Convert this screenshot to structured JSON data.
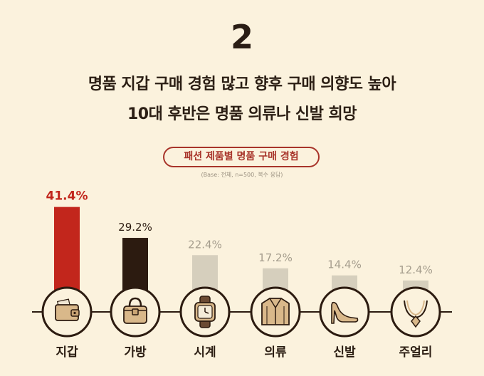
{
  "header": {
    "number": "2",
    "headline_line1": "명품 지갑 구매 경험 많고 향후 구매 의향도 높아",
    "headline_line2": "10대 후반은 명품 의류나 신발 희망"
  },
  "chart_data": {
    "type": "bar",
    "title": "패션 제품별 명품 구매 경험",
    "subtitle": "(Base: 전체, n=500, 복수 응답)",
    "categories": [
      "지갑",
      "가방",
      "시계",
      "의류",
      "신발",
      "주얼리"
    ],
    "values": [
      41.4,
      29.2,
      22.4,
      17.2,
      14.4,
      12.4
    ],
    "value_labels": [
      "41.4%",
      "29.2%",
      "22.4%",
      "17.2%",
      "14.4%",
      "12.4%"
    ],
    "icons": [
      "wallet-icon",
      "handbag-icon",
      "watch-icon",
      "jacket-icon",
      "high-heel-icon",
      "necklace-icon"
    ],
    "bar_colors": [
      "#c2261c",
      "#2c1b10",
      "#d6cfbd",
      "#d6cfbd",
      "#d6cfbd",
      "#d6cfbd"
    ],
    "label_colors": [
      "#c2261c",
      "#2c1b10",
      "#a59d8d",
      "#a59d8d",
      "#a59d8d",
      "#a59d8d"
    ],
    "ylim": [
      0,
      45
    ],
    "grid": false,
    "legend": "none"
  }
}
